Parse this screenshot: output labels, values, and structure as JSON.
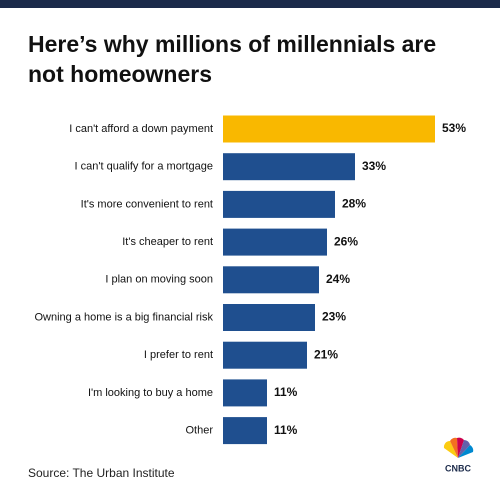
{
  "chart_data": {
    "type": "bar",
    "orientation": "horizontal",
    "title": [
      "Here’s why millions of millennials are",
      "not homeowners"
    ],
    "categories": [
      "I can't afford a down payment",
      "I can't qualify for a mortgage",
      "It's more convenient to rent",
      "It's cheaper to rent",
      "I plan on moving soon",
      "Owning a home is a big financial risk",
      "I prefer to rent",
      "I'm looking to buy a home",
      "Other"
    ],
    "values": [
      53,
      33,
      28,
      26,
      24,
      23,
      21,
      11,
      11
    ],
    "value_labels": [
      "53%",
      "33%",
      "28%",
      "26%",
      "24%",
      "23%",
      "21%",
      "11%",
      "11%"
    ],
    "colors": [
      "#f9b800",
      "#1f4f8f",
      "#1f4f8f",
      "#1f4f8f",
      "#1f4f8f",
      "#1f4f8f",
      "#1f4f8f",
      "#1f4f8f",
      "#1f4f8f"
    ],
    "source": "Source: The Urban Institute",
    "logo": "CNBC"
  }
}
